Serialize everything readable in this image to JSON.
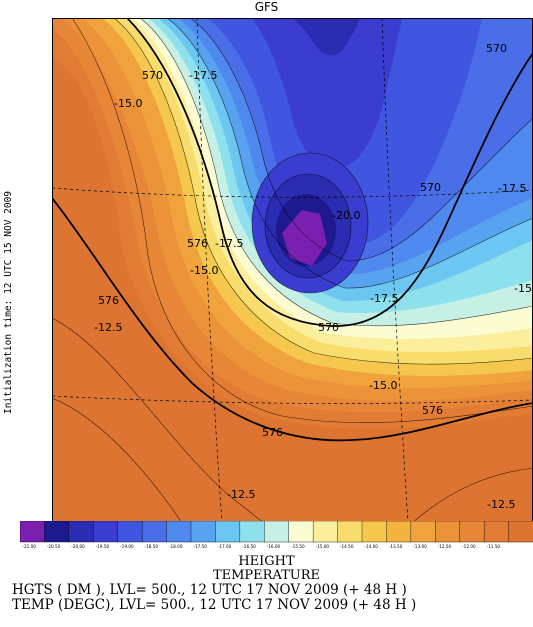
{
  "title": "GFS",
  "side_label": "Initialization time: 12 UTC 15 NOV 2009",
  "chart_data": {
    "type": "heatmap",
    "model": "GFS",
    "fields": [
      "HEIGHT",
      "TEMPERATURE"
    ],
    "colorbar": {
      "ticks": [
        "-21.00",
        "-20.50",
        "-20.00",
        "-19.50",
        "-19.00",
        "-18.50",
        "-18.00",
        "-17.50",
        "-17.00",
        "-16.50",
        "-16.00",
        "-15.50",
        "-15.00",
        "-14.50",
        "-14.00",
        "-13.50",
        "-13.00",
        "-12.50",
        "-12.00",
        "-11.50"
      ],
      "colors": [
        "#7b1fb0",
        "#1c1a8e",
        "#2b2cb2",
        "#3a3dd0",
        "#4055e0",
        "#4a6ee8",
        "#4f88ee",
        "#58a3f0",
        "#6cc6f2",
        "#8ee0ec",
        "#c6f0e6",
        "#fcfcd2",
        "#fbef9e",
        "#f8dc6c",
        "#f5c74c",
        "#f3b43f",
        "#f0a23c",
        "#ec9239",
        "#e88637",
        "#e27c34",
        "#dd7431"
      ],
      "range": [
        -21.0,
        -11.5
      ]
    },
    "height_contours": [
      {
        "label": "570"
      },
      {
        "label": "570"
      },
      {
        "label": "570"
      },
      {
        "label": "570"
      },
      {
        "label": "576"
      },
      {
        "label": "576"
      },
      {
        "label": "576"
      },
      {
        "label": "576"
      }
    ],
    "temperature_labels": [
      {
        "label": "-17.5"
      },
      {
        "label": "-15.0"
      },
      {
        "label": "-20.0"
      },
      {
        "label": "-17.5"
      },
      {
        "label": "-17.5"
      },
      {
        "label": "-15.0"
      },
      {
        "label": "-17.5"
      },
      {
        "label": "-12.5"
      },
      {
        "label": "-15.0"
      },
      {
        "label": "-12.5"
      },
      {
        "label": "-12.5"
      },
      {
        "label": "-15"
      }
    ]
  },
  "caption": {
    "line1": "HEIGHT",
    "line2": "TEMPERATURE",
    "line3": "HGTS ( DM ),  LVL= 500.,  12 UTC 17 NOV 2009 (+ 48 H )",
    "line4": "TEMP (DEGC),  LVL= 500.,  12 UTC 17 NOV 2009 (+ 48 H )"
  }
}
